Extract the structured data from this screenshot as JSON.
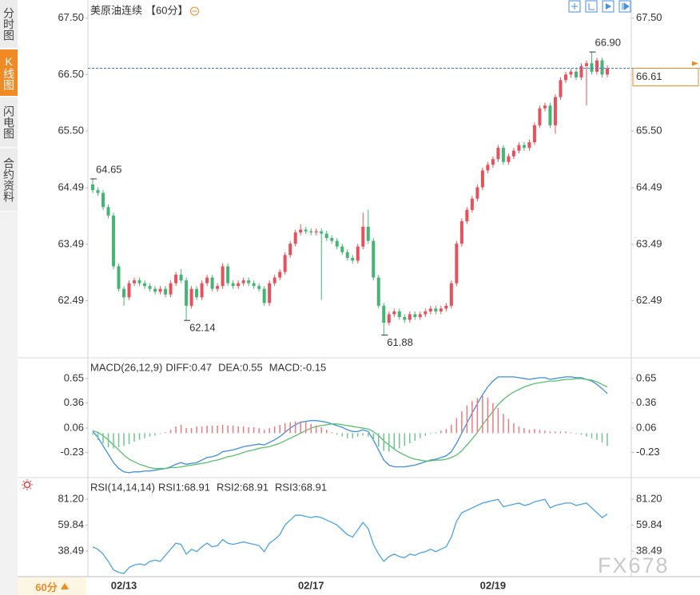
{
  "sidebar": {
    "tabs": [
      "分时图",
      "K线图",
      "闪电图",
      "合约资料"
    ],
    "period": "60分"
  },
  "watermark": "FX678",
  "chart_data": [
    {
      "type": "candlestick",
      "title": "美原油连续",
      "subtitle": "【60分】",
      "categories": [
        null,
        null,
        null,
        null,
        null,
        null,
        "02/13",
        null,
        null,
        null,
        null,
        null,
        null,
        null,
        null,
        null,
        null,
        null,
        null,
        null,
        null,
        null,
        null,
        null,
        null,
        null,
        null,
        null,
        null,
        null,
        null,
        null,
        null,
        null,
        null,
        null,
        null,
        null,
        null,
        null,
        null,
        null,
        "02/17",
        null,
        null,
        null,
        null,
        null,
        null,
        null,
        null,
        null,
        null,
        null,
        null,
        null,
        null,
        null,
        null,
        null,
        null,
        null,
        null,
        null,
        null,
        null,
        null,
        null,
        null,
        null,
        null,
        null,
        null,
        null,
        null,
        null,
        null,
        "02/19",
        null,
        null,
        null,
        null,
        null,
        null,
        null,
        null,
        null,
        null,
        null,
        null,
        null,
        null,
        null,
        null,
        null,
        null,
        null,
        null,
        null,
        null
      ],
      "open": [
        64.55,
        64.45,
        64.4,
        64.15,
        64.0,
        63.1,
        62.7,
        62.55,
        62.8,
        62.85,
        62.8,
        62.75,
        62.7,
        62.65,
        62.7,
        62.6,
        62.8,
        62.95,
        62.85,
        62.4,
        62.7,
        62.55,
        62.8,
        62.9,
        62.7,
        62.75,
        63.1,
        62.8,
        62.75,
        62.8,
        62.85,
        62.8,
        62.75,
        62.7,
        62.45,
        62.8,
        62.9,
        63.0,
        63.3,
        63.5,
        63.7,
        63.75,
        63.72,
        63.7,
        63.72,
        63.68,
        63.6,
        63.55,
        63.45,
        63.35,
        63.25,
        63.2,
        63.45,
        63.8,
        63.55,
        62.9,
        62.4,
        62.1,
        62.25,
        62.3,
        62.2,
        62.15,
        62.25,
        62.2,
        62.25,
        62.3,
        62.35,
        62.3,
        62.35,
        62.4,
        62.8,
        63.5,
        63.9,
        64.1,
        64.3,
        64.5,
        64.8,
        64.9,
        65.0,
        65.2,
        64.95,
        65.05,
        65.15,
        65.25,
        65.2,
        65.3,
        65.6,
        65.9,
        65.95,
        65.6,
        66.1,
        66.4,
        66.5,
        66.55,
        66.45,
        66.65,
        66.7,
        66.55,
        66.75,
        66.5
      ],
      "high": [
        64.65,
        64.5,
        64.45,
        64.2,
        64.05,
        63.15,
        62.75,
        62.85,
        62.9,
        62.9,
        62.85,
        62.8,
        62.75,
        62.75,
        62.75,
        62.85,
        63.0,
        63.05,
        62.9,
        62.75,
        62.75,
        62.85,
        62.95,
        62.95,
        62.8,
        63.15,
        63.15,
        62.85,
        62.85,
        62.9,
        62.9,
        62.85,
        62.8,
        62.75,
        62.85,
        62.95,
        63.05,
        63.35,
        63.55,
        63.75,
        63.85,
        63.8,
        63.77,
        63.77,
        63.77,
        63.73,
        63.65,
        63.6,
        63.5,
        63.4,
        63.3,
        63.5,
        64.05,
        64.1,
        63.6,
        62.95,
        62.45,
        62.3,
        62.35,
        62.35,
        62.25,
        62.3,
        62.3,
        62.3,
        62.35,
        62.4,
        62.4,
        62.4,
        62.45,
        62.85,
        63.55,
        63.95,
        64.15,
        64.35,
        64.55,
        64.85,
        64.95,
        65.05,
        65.25,
        65.25,
        65.1,
        65.2,
        65.3,
        65.3,
        65.35,
        65.65,
        65.95,
        66.0,
        66.0,
        66.15,
        66.45,
        66.55,
        66.6,
        66.6,
        66.7,
        66.75,
        66.9,
        66.8,
        66.8,
        66.66
      ],
      "low": [
        64.4,
        64.35,
        64.1,
        63.95,
        63.05,
        62.65,
        62.4,
        62.5,
        62.75,
        62.75,
        62.7,
        62.65,
        62.6,
        62.6,
        62.55,
        62.55,
        62.75,
        62.8,
        62.14,
        62.35,
        62.5,
        62.5,
        62.75,
        62.65,
        62.65,
        62.7,
        62.75,
        62.7,
        62.7,
        62.75,
        62.75,
        62.7,
        62.65,
        62.4,
        62.4,
        62.75,
        62.85,
        62.95,
        63.25,
        63.45,
        63.65,
        63.67,
        63.65,
        63.65,
        62.5,
        63.55,
        63.5,
        63.4,
        63.3,
        63.2,
        63.15,
        63.15,
        63.4,
        63.5,
        62.85,
        62.35,
        61.88,
        62.05,
        62.2,
        62.15,
        62.1,
        62.1,
        62.15,
        62.15,
        62.2,
        62.25,
        62.25,
        62.25,
        62.3,
        62.35,
        62.75,
        63.45,
        63.85,
        64.05,
        64.25,
        64.45,
        64.75,
        64.85,
        64.95,
        64.9,
        64.9,
        65.0,
        65.1,
        65.15,
        65.15,
        65.25,
        65.55,
        65.85,
        65.55,
        65.45,
        66.05,
        66.35,
        66.45,
        66.4,
        66.4,
        65.95,
        66.5,
        66.5,
        66.45,
        66.45
      ],
      "close": [
        64.45,
        64.4,
        64.15,
        64.0,
        63.1,
        62.7,
        62.55,
        62.8,
        62.85,
        62.8,
        62.75,
        62.7,
        62.65,
        62.7,
        62.6,
        62.8,
        62.95,
        62.85,
        62.4,
        62.7,
        62.55,
        62.8,
        62.9,
        62.7,
        62.75,
        63.1,
        62.8,
        62.75,
        62.8,
        62.85,
        62.8,
        62.75,
        62.7,
        62.45,
        62.8,
        62.9,
        63.0,
        63.3,
        63.5,
        63.7,
        63.75,
        63.72,
        63.7,
        63.72,
        63.68,
        63.6,
        63.55,
        63.45,
        63.35,
        63.25,
        63.2,
        63.45,
        63.8,
        63.55,
        62.9,
        62.4,
        62.1,
        62.25,
        62.3,
        62.2,
        62.15,
        62.25,
        62.2,
        62.25,
        62.3,
        62.35,
        62.3,
        62.35,
        62.4,
        62.8,
        63.5,
        63.9,
        64.1,
        64.3,
        64.5,
        64.8,
        64.9,
        65.0,
        65.2,
        64.95,
        65.05,
        65.15,
        65.25,
        65.2,
        65.3,
        65.6,
        65.9,
        65.95,
        65.6,
        66.1,
        66.4,
        66.5,
        66.55,
        66.45,
        66.65,
        66.7,
        66.55,
        66.75,
        66.5,
        66.61
      ],
      "up_color": "#e8505b",
      "down_color": "#45b574",
      "ylim": [
        61.52,
        67.68
      ],
      "yticks": [
        {
          "value": 67.5,
          "label": "67.50"
        },
        {
          "value": 66.5,
          "label": "66.50"
        },
        {
          "value": 65.5,
          "label": "65.50"
        },
        64.49,
        63.49,
        62.49
      ],
      "last": 66.61,
      "last_color": "#f08a24",
      "last_line_color": "#3a7bd5",
      "extremes": {
        "values": [
          66.9,
          64.65,
          62.14,
          61.88
        ],
        "value_labels": [
          "66.90",
          "64.65",
          "62.14",
          "61.88"
        ]
      }
    },
    {
      "type": "macd",
      "title": "MACD(26,12,9)",
      "series": [
        {
          "name": "DIFF:0.47",
          "color": "#3f8ee0",
          "values": [
            0.02,
            -0.05,
            -0.15,
            -0.25,
            -0.35,
            -0.42,
            -0.46,
            -0.47,
            -0.46,
            -0.46,
            -0.45,
            -0.45,
            -0.44,
            -0.43,
            -0.42,
            -0.4,
            -0.37,
            -0.35,
            -0.37,
            -0.36,
            -0.35,
            -0.32,
            -0.29,
            -0.28,
            -0.26,
            -0.22,
            -0.21,
            -0.2,
            -0.18,
            -0.16,
            -0.15,
            -0.14,
            -0.13,
            -0.14,
            -0.11,
            -0.08,
            -0.04,
            0.01,
            0.06,
            0.1,
            0.13,
            0.14,
            0.15,
            0.15,
            0.14,
            0.13,
            0.11,
            0.09,
            0.07,
            0.04,
            0.02,
            0.02,
            0.04,
            0.02,
            -0.08,
            -0.2,
            -0.32,
            -0.38,
            -0.4,
            -0.4,
            -0.4,
            -0.39,
            -0.38,
            -0.36,
            -0.34,
            -0.32,
            -0.31,
            -0.29,
            -0.27,
            -0.22,
            -0.12,
            0.0,
            0.12,
            0.24,
            0.35,
            0.46,
            0.55,
            0.62,
            0.67,
            0.67,
            0.67,
            0.67,
            0.66,
            0.65,
            0.64,
            0.65,
            0.66,
            0.66,
            0.64,
            0.65,
            0.66,
            0.67,
            0.67,
            0.66,
            0.66,
            0.64,
            0.62,
            0.58,
            0.53,
            0.47
          ]
        },
        {
          "name": "DEA:0.55",
          "color": "#58c06c",
          "values": [
            0.03,
            0.01,
            -0.03,
            -0.08,
            -0.14,
            -0.2,
            -0.26,
            -0.31,
            -0.34,
            -0.37,
            -0.39,
            -0.41,
            -0.42,
            -0.42,
            -0.42,
            -0.41,
            -0.41,
            -0.4,
            -0.39,
            -0.38,
            -0.37,
            -0.36,
            -0.35,
            -0.33,
            -0.32,
            -0.3,
            -0.28,
            -0.27,
            -0.25,
            -0.23,
            -0.21,
            -0.2,
            -0.18,
            -0.17,
            -0.16,
            -0.14,
            -0.12,
            -0.09,
            -0.06,
            -0.03,
            0.0,
            0.03,
            0.06,
            0.08,
            0.09,
            0.1,
            0.11,
            0.11,
            0.1,
            0.09,
            0.08,
            0.07,
            0.06,
            0.05,
            0.02,
            -0.03,
            -0.09,
            -0.14,
            -0.19,
            -0.23,
            -0.26,
            -0.29,
            -0.31,
            -0.32,
            -0.33,
            -0.33,
            -0.32,
            -0.32,
            -0.31,
            -0.29,
            -0.26,
            -0.21,
            -0.14,
            -0.07,
            0.01,
            0.1,
            0.18,
            0.26,
            0.34,
            0.4,
            0.45,
            0.49,
            0.52,
            0.55,
            0.57,
            0.59,
            0.6,
            0.61,
            0.62,
            0.62,
            0.63,
            0.64,
            0.64,
            0.65,
            0.65,
            0.64,
            0.63,
            0.61,
            0.58,
            0.55
          ]
        },
        {
          "name": "MACD:-0.15",
          "color": "#5aaee8",
          "bars": true,
          "up_color": "#ec7a82",
          "down_color": "#6cc78e",
          "values": [
            -0.02,
            -0.08,
            -0.12,
            -0.17,
            -0.18,
            -0.17,
            -0.15,
            -0.13,
            -0.1,
            -0.08,
            -0.06,
            -0.04,
            -0.03,
            -0.01,
            0.01,
            0.04,
            0.08,
            0.1,
            0.06,
            0.06,
            0.08,
            0.08,
            0.09,
            0.09,
            0.09,
            0.1,
            0.09,
            0.09,
            0.08,
            0.08,
            0.07,
            0.07,
            0.06,
            0.04,
            0.06,
            0.08,
            0.1,
            0.12,
            0.13,
            0.14,
            0.14,
            0.13,
            0.11,
            0.09,
            0.07,
            0.04,
            0.01,
            -0.02,
            -0.04,
            -0.06,
            -0.06,
            -0.04,
            -0.03,
            -0.04,
            -0.1,
            -0.16,
            -0.21,
            -0.22,
            -0.2,
            -0.18,
            -0.15,
            -0.12,
            -0.09,
            -0.06,
            -0.03,
            -0.01,
            0.01,
            0.03,
            0.05,
            0.1,
            0.18,
            0.26,
            0.33,
            0.38,
            0.42,
            0.45,
            0.42,
            0.36,
            0.3,
            0.23,
            0.17,
            0.12,
            0.08,
            0.06,
            0.04,
            0.05,
            0.04,
            0.03,
            0.02,
            0.02,
            0.02,
            0.02,
            0.01,
            -0.01,
            -0.02,
            -0.04,
            -0.06,
            -0.08,
            -0.11,
            -0.15
          ]
        }
      ],
      "ylim": [
        -0.5,
        0.83
      ],
      "yticks": [
        0.65,
        0.36,
        0.06,
        -0.23
      ]
    },
    {
      "type": "line",
      "title": "RSI(14,14,14)",
      "series": [
        {
          "name": "RSI1:68.91",
          "color": "#4aa3e8",
          "values": [
            42,
            40,
            36,
            30,
            23,
            21,
            20,
            25,
            27,
            28,
            27,
            30,
            31,
            30,
            35,
            40,
            45,
            44,
            36,
            40,
            38,
            42,
            45,
            42,
            43,
            48,
            45,
            44,
            45,
            46,
            45,
            44,
            43,
            38,
            45,
            48,
            52,
            60,
            64,
            68,
            68,
            67,
            66,
            67,
            66,
            64,
            62,
            60,
            56,
            52,
            50,
            56,
            62,
            57,
            44,
            36,
            30,
            34,
            36,
            34,
            33,
            36,
            35,
            37,
            38,
            40,
            38,
            40,
            42,
            50,
            63,
            70,
            72,
            74,
            76,
            78,
            79,
            80,
            81,
            75,
            76,
            77,
            78,
            76,
            77,
            79,
            80,
            81,
            74,
            76,
            77,
            78,
            78,
            76,
            77,
            78,
            74,
            70,
            66,
            68.91
          ]
        },
        {
          "name": "RSI2:68.91",
          "color": "#58c06c"
        },
        {
          "name": "RSI3:68.91",
          "color": "#5aaee8"
        }
      ],
      "ylim": [
        18.8,
        97.6
      ],
      "yticks": [
        {
          "value": 81.2,
          "label": "81.20"
        },
        59.84,
        38.49
      ]
    }
  ]
}
